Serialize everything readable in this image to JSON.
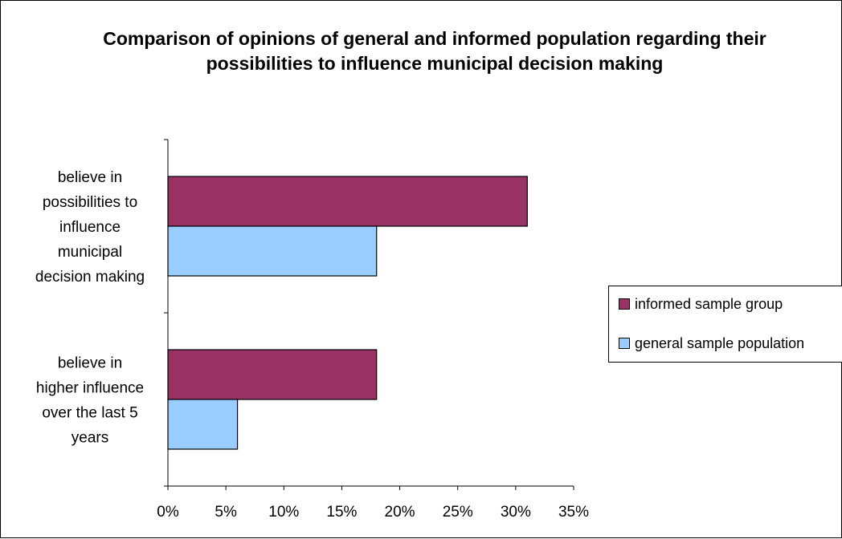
{
  "chart_data": {
    "type": "bar",
    "orientation": "horizontal",
    "title": "Comparison of opinions of general and informed population regarding their possibilities to influence municipal decision making",
    "categories": [
      "believe in possibilities to influence municipal decision making",
      "believe in higher influence over the last 5 years"
    ],
    "series": [
      {
        "name": "informed sample group",
        "values": [
          31,
          18
        ],
        "color": "#993366"
      },
      {
        "name": "general sample population",
        "values": [
          18,
          6
        ],
        "color": "#99CCFF"
      }
    ],
    "x_ticks": [
      "0%",
      "5%",
      "10%",
      "15%",
      "20%",
      "25%",
      "30%",
      "35%"
    ],
    "xlim": [
      0,
      35
    ],
    "unit": "%",
    "xlabel": "",
    "ylabel": "",
    "grid": false,
    "legend_position": "right"
  },
  "legend": {
    "items": [
      {
        "label": "informed sample group",
        "color": "#993366"
      },
      {
        "label": "general sample population",
        "color": "#99CCFF"
      }
    ]
  }
}
